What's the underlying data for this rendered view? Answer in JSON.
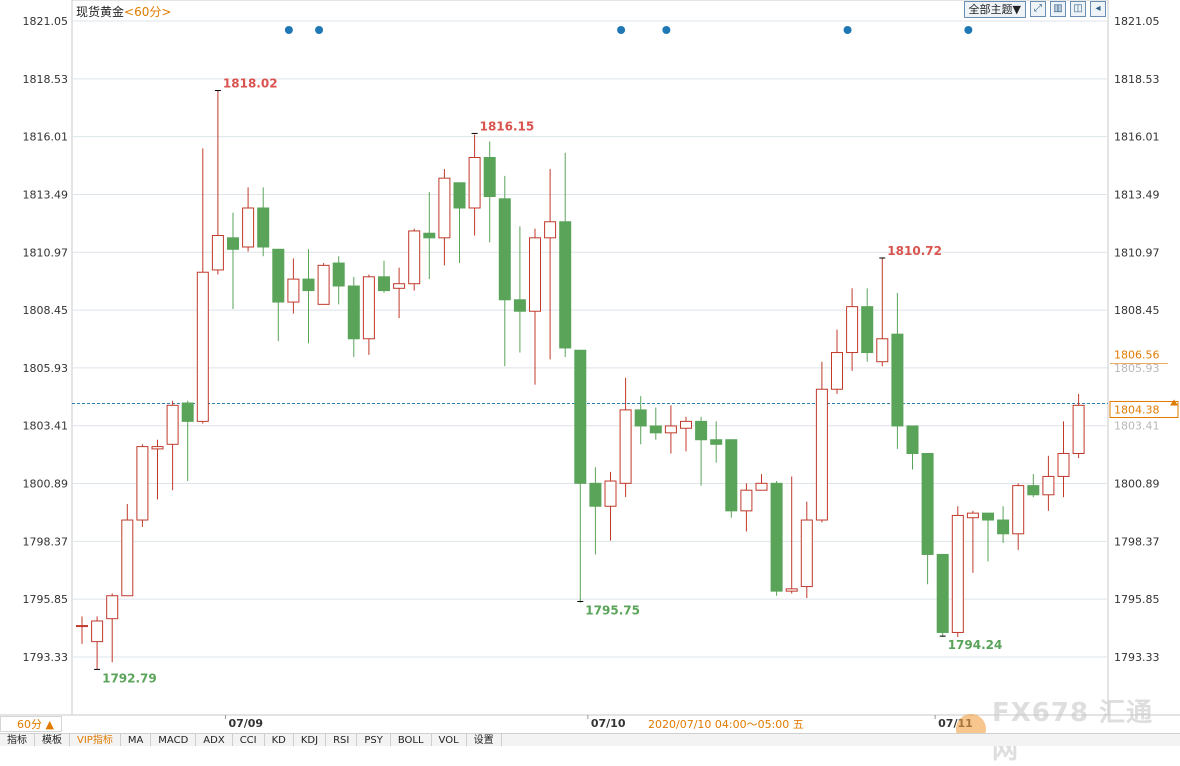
{
  "header": {
    "instrument": "现货黄金",
    "period": "<60分>",
    "topic_select": "全部主题▼"
  },
  "toolbar_icons": [
    "expand-icon",
    "panel-icon",
    "split-icon",
    "collapse-icon"
  ],
  "bottom": {
    "period_button": "60分 ▲",
    "tabs": [
      "指标",
      "模板",
      "VIP指标",
      "MA",
      "MACD",
      "ADX",
      "CCI",
      "KD",
      "KDJ",
      "RSI",
      "PSY",
      "BOLL",
      "VOL",
      "设置"
    ],
    "active_tab": "VIP指标",
    "tooltip": "2020/07/10 04:00～05:00 五"
  },
  "watermark": "FX678 汇通网",
  "colors": {
    "up": "#c0392b",
    "down": "#5aa45a",
    "grid": "#dde4ea",
    "accent": "#e07b00"
  },
  "chart_data": {
    "type": "candlestick",
    "y_ticks": [
      "1821.05",
      "1818.53",
      "1816.01",
      "1813.49",
      "1810.97",
      "1808.45",
      "1805.93",
      "1803.41",
      "1800.89",
      "1798.37",
      "1795.85",
      "1793.33"
    ],
    "ylim": [
      1792.1,
      1821.05
    ],
    "x_labels": [
      {
        "text": "07/09",
        "index": 10
      },
      {
        "text": "07/10",
        "index": 34
      },
      {
        "text": "07/11",
        "index": 57
      }
    ],
    "current_price": "1804.38",
    "hline": 1804.38,
    "marker_price": "1806.56",
    "event_dots": [
      13.7,
      15.7,
      35.7,
      38.7,
      50.7,
      58.7
    ],
    "annotations": [
      {
        "text": "1818.02",
        "index": 9,
        "value": 1818.02,
        "kind": "high"
      },
      {
        "text": "1816.15",
        "index": 26,
        "value": 1816.15,
        "kind": "high"
      },
      {
        "text": "1810.72",
        "index": 53,
        "value": 1810.72,
        "kind": "high"
      },
      {
        "text": "1792.79",
        "index": 1,
        "value": 1792.79,
        "kind": "low"
      },
      {
        "text": "1795.75",
        "index": 33,
        "value": 1795.75,
        "kind": "low"
      },
      {
        "text": "1794.24",
        "index": 57,
        "value": 1794.24,
        "kind": "low"
      }
    ],
    "ohlc": [
      [
        1794.7,
        1794.7,
        1795.1,
        1793.9
      ],
      [
        1794.0,
        1794.9,
        1795.1,
        1792.8
      ],
      [
        1795.0,
        1796.0,
        1796.1,
        1793.1
      ],
      [
        1796.0,
        1799.3,
        1800.0,
        1796.0
      ],
      [
        1799.3,
        1802.5,
        1802.6,
        1799.0
      ],
      [
        1802.4,
        1802.5,
        1802.8,
        1800.2
      ],
      [
        1802.6,
        1804.3,
        1804.5,
        1800.6
      ],
      [
        1804.4,
        1803.6,
        1804.5,
        1801.0
      ],
      [
        1803.6,
        1810.1,
        1815.5,
        1803.5
      ],
      [
        1810.2,
        1811.7,
        1818.0,
        1810.0
      ],
      [
        1811.6,
        1811.1,
        1812.7,
        1808.5
      ],
      [
        1811.2,
        1812.9,
        1813.8,
        1811.0
      ],
      [
        1812.9,
        1811.2,
        1813.8,
        1810.8
      ],
      [
        1811.1,
        1808.8,
        1811.1,
        1807.1
      ],
      [
        1808.8,
        1809.8,
        1810.7,
        1808.3
      ],
      [
        1809.8,
        1809.3,
        1811.1,
        1807.0
      ],
      [
        1808.7,
        1810.4,
        1810.5,
        1808.7
      ],
      [
        1810.5,
        1809.5,
        1810.8,
        1808.7
      ],
      [
        1809.5,
        1807.2,
        1809.9,
        1806.4
      ],
      [
        1807.2,
        1809.9,
        1810.0,
        1806.5
      ],
      [
        1809.9,
        1809.3,
        1810.6,
        1809.2
      ],
      [
        1809.4,
        1809.6,
        1810.3,
        1808.1
      ],
      [
        1809.6,
        1811.9,
        1812.0,
        1809.3
      ],
      [
        1811.8,
        1811.6,
        1813.6,
        1809.8
      ],
      [
        1811.6,
        1814.2,
        1814.6,
        1810.4
      ],
      [
        1814.0,
        1812.9,
        1813.8,
        1810.5
      ],
      [
        1812.9,
        1815.1,
        1816.1,
        1811.7
      ],
      [
        1815.1,
        1813.4,
        1815.8,
        1811.4
      ],
      [
        1813.3,
        1808.9,
        1814.3,
        1806.0
      ],
      [
        1808.9,
        1808.4,
        1812.1,
        1806.6
      ],
      [
        1808.4,
        1811.6,
        1812.0,
        1805.2
      ],
      [
        1811.6,
        1812.3,
        1814.6,
        1806.3
      ],
      [
        1812.3,
        1806.8,
        1815.3,
        1806.4
      ],
      [
        1806.7,
        1800.9,
        1806.7,
        1795.7
      ],
      [
        1800.9,
        1799.9,
        1801.6,
        1797.8
      ],
      [
        1799.9,
        1801.0,
        1801.4,
        1798.4
      ],
      [
        1800.9,
        1804.1,
        1805.5,
        1800.3
      ],
      [
        1804.1,
        1803.4,
        1804.7,
        1802.6
      ],
      [
        1803.4,
        1803.1,
        1804.2,
        1802.8
      ],
      [
        1803.1,
        1803.4,
        1804.3,
        1802.2
      ],
      [
        1803.3,
        1803.6,
        1803.8,
        1802.3
      ],
      [
        1803.6,
        1802.8,
        1803.8,
        1800.8
      ],
      [
        1802.8,
        1802.6,
        1803.6,
        1801.8
      ],
      [
        1802.8,
        1799.7,
        1802.6,
        1799.4
      ],
      [
        1799.7,
        1800.6,
        1800.9,
        1798.8
      ],
      [
        1800.6,
        1800.9,
        1801.3,
        1800.6
      ],
      [
        1800.9,
        1796.2,
        1801.0,
        1796.0
      ],
      [
        1796.2,
        1796.3,
        1801.2,
        1796.1
      ],
      [
        1796.4,
        1799.3,
        1800.1,
        1795.9
      ],
      [
        1799.3,
        1805.0,
        1806.2,
        1799.2
      ],
      [
        1805.0,
        1806.6,
        1807.6,
        1804.8
      ],
      [
        1806.6,
        1808.6,
        1809.4,
        1805.8
      ],
      [
        1808.6,
        1806.6,
        1809.4,
        1806.2
      ],
      [
        1806.2,
        1807.2,
        1810.7,
        1806.0
      ],
      [
        1807.4,
        1803.4,
        1809.2,
        1802.4
      ],
      [
        1803.4,
        1802.2,
        1803.4,
        1801.5
      ],
      [
        1802.2,
        1797.8,
        1802.2,
        1796.5
      ],
      [
        1797.8,
        1794.4,
        1797.8,
        1794.2
      ],
      [
        1794.4,
        1799.5,
        1799.9,
        1794.2
      ],
      [
        1799.4,
        1799.6,
        1799.7,
        1797.0
      ],
      [
        1799.6,
        1799.3,
        1799.6,
        1797.5
      ],
      [
        1799.3,
        1798.7,
        1799.9,
        1798.3
      ],
      [
        1798.7,
        1800.8,
        1800.9,
        1798.0
      ],
      [
        1800.8,
        1800.4,
        1801.3,
        1800.3
      ],
      [
        1800.4,
        1801.2,
        1802.1,
        1799.7
      ],
      [
        1801.2,
        1802.2,
        1803.6,
        1800.3
      ],
      [
        1802.2,
        1804.3,
        1804.8,
        1802.0
      ]
    ]
  }
}
